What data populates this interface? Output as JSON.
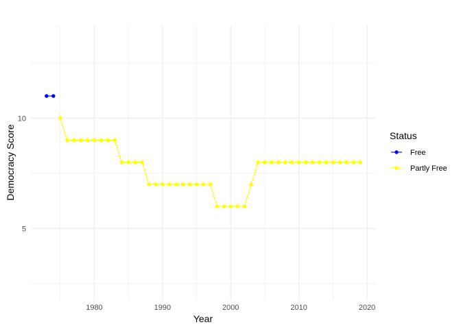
{
  "chart_data": {
    "type": "line",
    "xlabel": "Year",
    "ylabel": "Democracy Score",
    "xlim": [
      1970.7,
      2021.3
    ],
    "ylim": [
      1.75,
      14.2
    ],
    "x_ticks": [
      1980,
      1990,
      2000,
      2010,
      2020
    ],
    "y_ticks": [
      5,
      10
    ],
    "grid": true,
    "legend_position": "right",
    "legend_title": "Status",
    "series": [
      {
        "name": "Free",
        "color": "#0000FF",
        "x": [
          1973,
          1974
        ],
        "y": [
          11,
          11
        ]
      },
      {
        "name": "Partly Free",
        "color": "#FFFF00",
        "x": [
          1975,
          1976,
          1977,
          1978,
          1979,
          1980,
          1981,
          1982,
          1983,
          1984,
          1985,
          1986,
          1987,
          1988,
          1989,
          1990,
          1991,
          1992,
          1993,
          1994,
          1995,
          1996,
          1997,
          1998,
          1999,
          2000,
          2001,
          2002,
          2003,
          2004,
          2005,
          2006,
          2007,
          2008,
          2009,
          2010,
          2011,
          2012,
          2013,
          2014,
          2015,
          2016,
          2017,
          2018,
          2019
        ],
        "y": [
          10,
          9,
          9,
          9,
          9,
          9,
          9,
          9,
          9,
          8,
          8,
          8,
          8,
          7,
          7,
          7,
          7,
          7,
          7,
          7,
          7,
          7,
          7,
          6,
          6,
          6,
          6,
          6,
          7,
          8,
          8,
          8,
          8,
          8,
          8,
          8,
          8,
          8,
          8,
          8,
          8,
          8,
          8,
          8,
          8
        ]
      }
    ]
  }
}
